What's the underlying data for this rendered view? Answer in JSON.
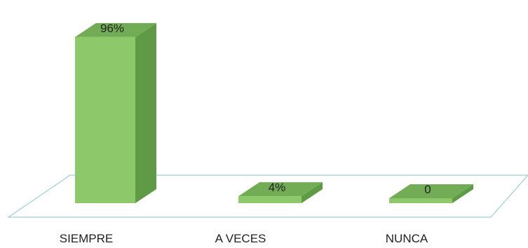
{
  "chart_data": {
    "type": "bar",
    "style": "3d",
    "categories": [
      "SIEMPRE",
      "A VECES",
      "NUNCA"
    ],
    "values": [
      96,
      4,
      0
    ],
    "data_labels": [
      "96%",
      "4%",
      "0"
    ],
    "unit": "%",
    "ylim": [
      0,
      100
    ],
    "grid": false,
    "legend": "none",
    "colors": {
      "bar_front": "#8dc96a",
      "bar_side": "#5f9a44",
      "bar_top": "#72ad55",
      "floor_line": "#9ccfd6"
    }
  }
}
